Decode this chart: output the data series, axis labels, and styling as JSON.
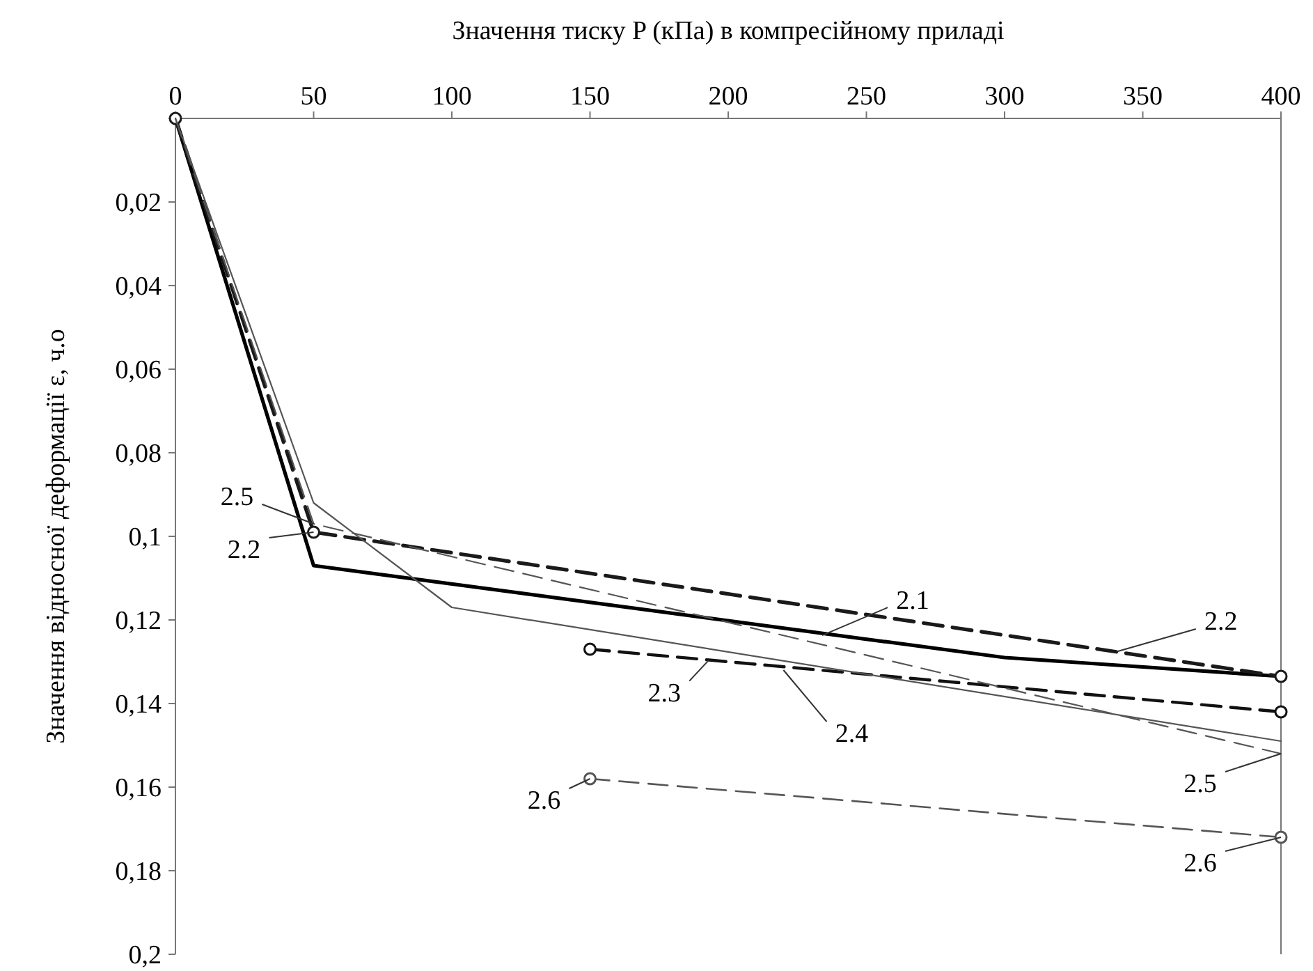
{
  "chart_data": {
    "type": "line",
    "xlabel": "Значення тиску P (кПа) в компресійному приладі",
    "ylabel": "Значення відносної деформації ε, ч.о",
    "xlim": [
      0,
      400
    ],
    "xticks": [
      0,
      50,
      100,
      150,
      200,
      250,
      300,
      350,
      400
    ],
    "ylim": [
      0.2,
      0
    ],
    "yticks": [
      {
        "value": 0,
        "label": null
      },
      {
        "value": 0.02,
        "label": "0,02"
      },
      {
        "value": 0.04,
        "label": "0,04"
      },
      {
        "value": 0.06,
        "label": "0,06"
      },
      {
        "value": 0.08,
        "label": "0,08"
      },
      {
        "value": 0.1,
        "label": "0,1"
      },
      {
        "value": 0.12,
        "label": "0,12"
      },
      {
        "value": 0.14,
        "label": "0,14"
      },
      {
        "value": 0.16,
        "label": "0,16"
      },
      {
        "value": 0.18,
        "label": "0,18"
      },
      {
        "value": 0.2,
        "label": "0,2"
      }
    ],
    "grid": false,
    "series": [
      {
        "color": "#000000",
        "line_style": "solid",
        "x": [
          0,
          50,
          300,
          400
        ],
        "values": [
          0,
          0.107,
          0.129,
          0.1335
        ]
      },
      {
        "color": "#1a1a1a",
        "line_style": "dashed",
        "marker": "circle",
        "x": [
          0,
          50,
          400
        ],
        "values": [
          0,
          0.099,
          0.1335
        ]
      },
      {
        "color": "#111111",
        "line_style": "dashed",
        "marker": "circle",
        "x": [
          150,
          400
        ],
        "values": [
          0.127,
          0.142
        ]
      },
      {
        "color": "#555555",
        "line_style": "solid",
        "x": [
          0,
          50,
          100,
          400
        ],
        "values": [
          0,
          0.092,
          0.117,
          0.149
        ]
      },
      {
        "color": "#555555",
        "line_style": "dashed",
        "x": [
          0,
          50,
          400
        ],
        "values": [
          0,
          0.097,
          0.152
        ]
      },
      {
        "color": "#555555",
        "line_style": "dashed",
        "marker": "circle",
        "x": [
          150,
          400
        ],
        "values": [
          0.158,
          0.172
        ]
      }
    ],
    "annotations": [
      {
        "text": "2.5",
        "x": 50,
        "y": 0.097
      },
      {
        "text": "2.2",
        "x": 50,
        "y": 0.099
      },
      {
        "text": "2.1",
        "x": 234,
        "y": 0.1237
      },
      {
        "text": "2.2",
        "x": 341,
        "y": 0.1275
      },
      {
        "text": "2.3",
        "x": 193,
        "y": 0.1296
      },
      {
        "text": "2.4",
        "x": 220,
        "y": 0.132
      },
      {
        "text": "2.5",
        "x": 400,
        "y": 0.152
      },
      {
        "text": "2.6",
        "x": 150,
        "y": 0.158
      },
      {
        "text": "2.6",
        "x": 400,
        "y": 0.172
      }
    ]
  }
}
